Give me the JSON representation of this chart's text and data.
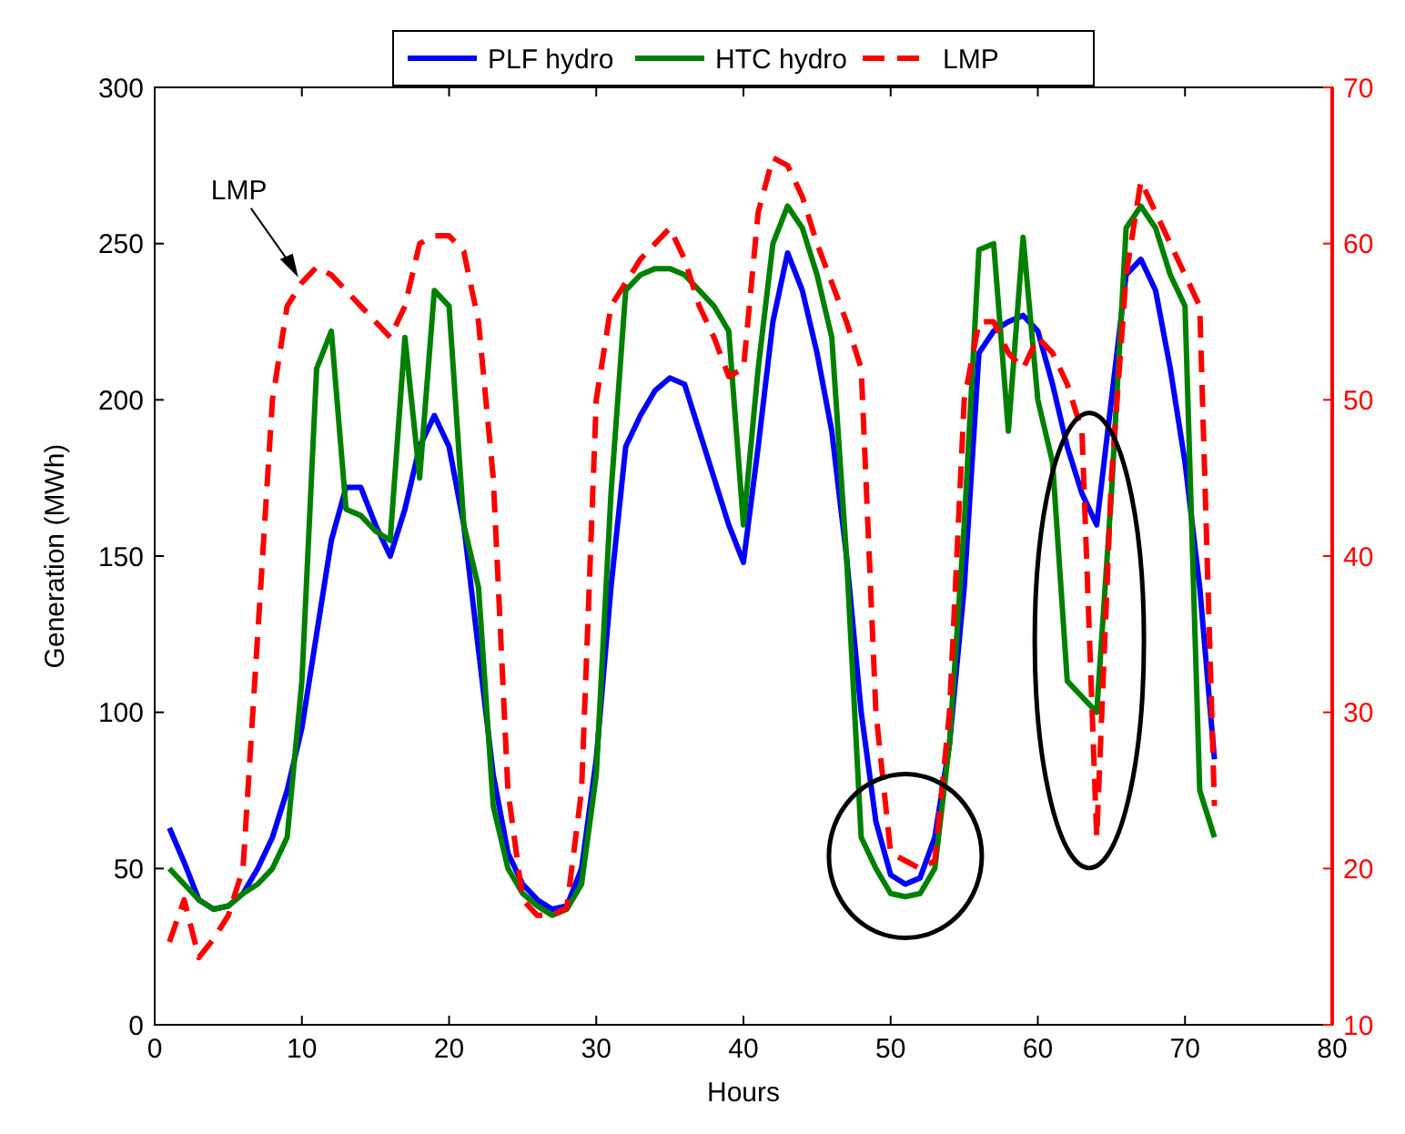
{
  "chart_data": {
    "type": "line",
    "xlabel": "Hours",
    "ylabel": "Generation (MWh)",
    "xlim": [
      0,
      80
    ],
    "xticks": [
      0,
      10,
      20,
      30,
      40,
      50,
      60,
      70,
      80
    ],
    "ylim": [
      0,
      300
    ],
    "yticks": [
      0,
      50,
      100,
      150,
      200,
      250,
      300
    ],
    "y2lim": [
      10,
      70
    ],
    "y2ticks": [
      10,
      20,
      30,
      40,
      50,
      60,
      70
    ],
    "x": [
      1,
      2,
      3,
      4,
      5,
      6,
      7,
      8,
      9,
      10,
      11,
      12,
      13,
      14,
      15,
      16,
      17,
      18,
      19,
      20,
      21,
      22,
      23,
      24,
      25,
      26,
      27,
      28,
      29,
      30,
      31,
      32,
      33,
      34,
      35,
      36,
      37,
      38,
      39,
      40,
      41,
      42,
      43,
      44,
      45,
      46,
      47,
      48,
      49,
      50,
      51,
      52,
      53,
      54,
      55,
      56,
      57,
      58,
      59,
      60,
      61,
      62,
      63,
      64,
      65,
      66,
      67,
      68,
      69,
      70,
      71,
      72
    ],
    "legend": "top",
    "grid": false,
    "annotations": [
      {
        "text": "LMP",
        "x": 10,
        "y": 238
      }
    ],
    "series": [
      {
        "name": "PLF hydro",
        "color": "#0000ff",
        "line_style": "solid",
        "values": [
          63,
          52,
          40,
          37,
          38,
          42,
          50,
          60,
          75,
          95,
          125,
          155,
          172,
          172,
          160,
          150,
          165,
          185,
          195,
          185,
          160,
          120,
          80,
          55,
          45,
          40,
          37,
          38,
          50,
          85,
          140,
          185,
          195,
          203,
          207,
          205,
          190,
          175,
          160,
          148,
          185,
          225,
          247,
          235,
          215,
          190,
          150,
          100,
          65,
          48,
          45,
          47,
          60,
          90,
          140,
          215,
          222,
          225,
          227,
          222,
          205,
          185,
          170,
          160,
          200,
          240,
          245,
          235,
          210,
          180,
          140,
          85
        ]
      },
      {
        "name": "HTC hydro",
        "color": "#008000",
        "line_style": "solid",
        "values": [
          50,
          45,
          40,
          37,
          38,
          42,
          45,
          50,
          60,
          110,
          210,
          222,
          165,
          163,
          158,
          155,
          220,
          175,
          235,
          230,
          160,
          140,
          70,
          50,
          42,
          38,
          35,
          37,
          45,
          80,
          170,
          235,
          240,
          242,
          242,
          240,
          235,
          230,
          222,
          160,
          210,
          250,
          262,
          255,
          240,
          220,
          150,
          60,
          50,
          42,
          41,
          42,
          50,
          90,
          160,
          248,
          250,
          190,
          252,
          200,
          180,
          110,
          105,
          100,
          170,
          255,
          262,
          255,
          240,
          230,
          75,
          60
        ]
      },
      {
        "name": "LMP",
        "color": "#ff0000",
        "line_style": "dashed",
        "axis": "y2",
        "values": [
          15.3,
          18,
          14.3,
          15.5,
          17,
          20,
          35,
          50,
          56,
          57.5,
          58.5,
          58,
          57,
          56,
          55,
          54,
          56,
          60,
          60.5,
          60.5,
          59.5,
          55,
          45,
          25,
          18,
          17,
          17,
          17.5,
          25,
          50,
          56,
          57.5,
          59,
          60,
          61,
          59,
          56,
          54,
          51.5,
          52,
          62,
          65.5,
          65,
          63,
          60,
          57.5,
          55,
          52,
          30,
          21,
          20.5,
          20,
          20.5,
          30,
          50,
          55,
          55,
          53,
          52,
          54,
          53,
          51,
          48,
          22,
          45,
          58,
          64,
          62,
          60,
          58,
          56,
          24
        ]
      }
    ]
  }
}
